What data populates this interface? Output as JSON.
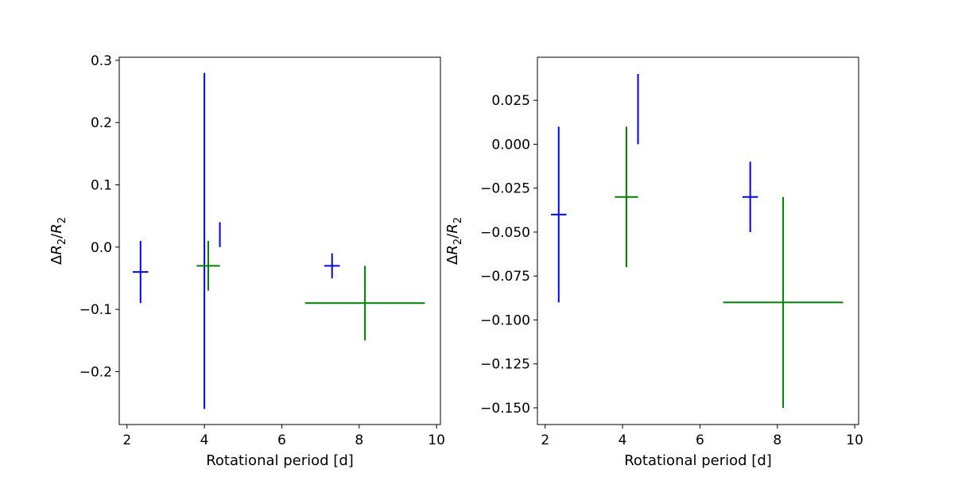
{
  "chart_data": [
    {
      "type": "scatter",
      "title": "",
      "xlabel": "Rotational period [d]",
      "ylabel": "ΔR2/R2",
      "xlim": [
        1.8,
        10.1
      ],
      "ylim": [
        -0.285,
        0.305
      ],
      "xticks": [
        2,
        4,
        6,
        8,
        10
      ],
      "yticks": [
        -0.2,
        -0.1,
        0.0,
        0.1,
        0.2,
        0.3
      ],
      "ytick_labels": [
        "−0.2",
        "−0.1",
        "0.0",
        "0.1",
        "0.2",
        "0.3"
      ],
      "grid": false,
      "legend": "none",
      "points": [
        {
          "x": 2.35,
          "y": -0.04,
          "xerr": [
            0.2,
            0.2
          ],
          "yerr": [
            0.05,
            0.05
          ],
          "color": "#0000ff"
        },
        {
          "x": 4.0,
          "y": 0.01,
          "xerr": [
            0.0,
            0.0
          ],
          "yerr": [
            0.27,
            0.27
          ],
          "color": "#0000ff"
        },
        {
          "x": 4.4,
          "y": 0.02,
          "xerr": [
            0.0,
            0.0
          ],
          "yerr": [
            0.02,
            0.02
          ],
          "color": "#0000ff"
        },
        {
          "x": 7.3,
          "y": -0.03,
          "xerr": [
            0.2,
            0.2
          ],
          "yerr": [
            0.02,
            0.02
          ],
          "color": "#0000ff"
        },
        {
          "x": 4.1,
          "y": -0.03,
          "xerr": [
            0.3,
            0.3
          ],
          "yerr": [
            0.04,
            0.04
          ],
          "color": "#008000"
        },
        {
          "x": 8.15,
          "y": -0.09,
          "xerr": [
            1.55,
            1.55
          ],
          "yerr": [
            0.06,
            0.06
          ],
          "color": "#008000"
        }
      ]
    },
    {
      "type": "scatter",
      "title": "",
      "xlabel": "Rotational period [d]",
      "ylabel": "ΔR2/R2",
      "xlim": [
        1.8,
        10.1
      ],
      "ylim": [
        -0.1595,
        0.0495
      ],
      "xticks": [
        2,
        4,
        6,
        8,
        10
      ],
      "yticks": [
        -0.15,
        -0.125,
        -0.1,
        -0.075,
        -0.05,
        -0.025,
        0.0,
        0.025
      ],
      "ytick_labels": [
        "−0.150",
        "−0.125",
        "−0.100",
        "−0.075",
        "−0.050",
        "−0.025",
        "0.000",
        "0.025"
      ],
      "grid": false,
      "legend": "none",
      "points": [
        {
          "x": 2.35,
          "y": -0.04,
          "xerr": [
            0.2,
            0.2
          ],
          "yerr": [
            0.05,
            0.05
          ],
          "color": "#0000ff"
        },
        {
          "x": 4.4,
          "y": 0.02,
          "xerr": [
            0.0,
            0.0
          ],
          "yerr": [
            0.02,
            0.02
          ],
          "color": "#0000ff"
        },
        {
          "x": 7.3,
          "y": -0.03,
          "xerr": [
            0.2,
            0.2
          ],
          "yerr": [
            0.02,
            0.02
          ],
          "color": "#0000ff"
        },
        {
          "x": 4.1,
          "y": -0.03,
          "xerr": [
            0.3,
            0.3
          ],
          "yerr": [
            0.04,
            0.04
          ],
          "color": "#008000"
        },
        {
          "x": 8.15,
          "y": -0.09,
          "xerr": [
            1.55,
            1.55
          ],
          "yerr": [
            0.06,
            0.06
          ],
          "color": "#008000"
        }
      ]
    }
  ]
}
